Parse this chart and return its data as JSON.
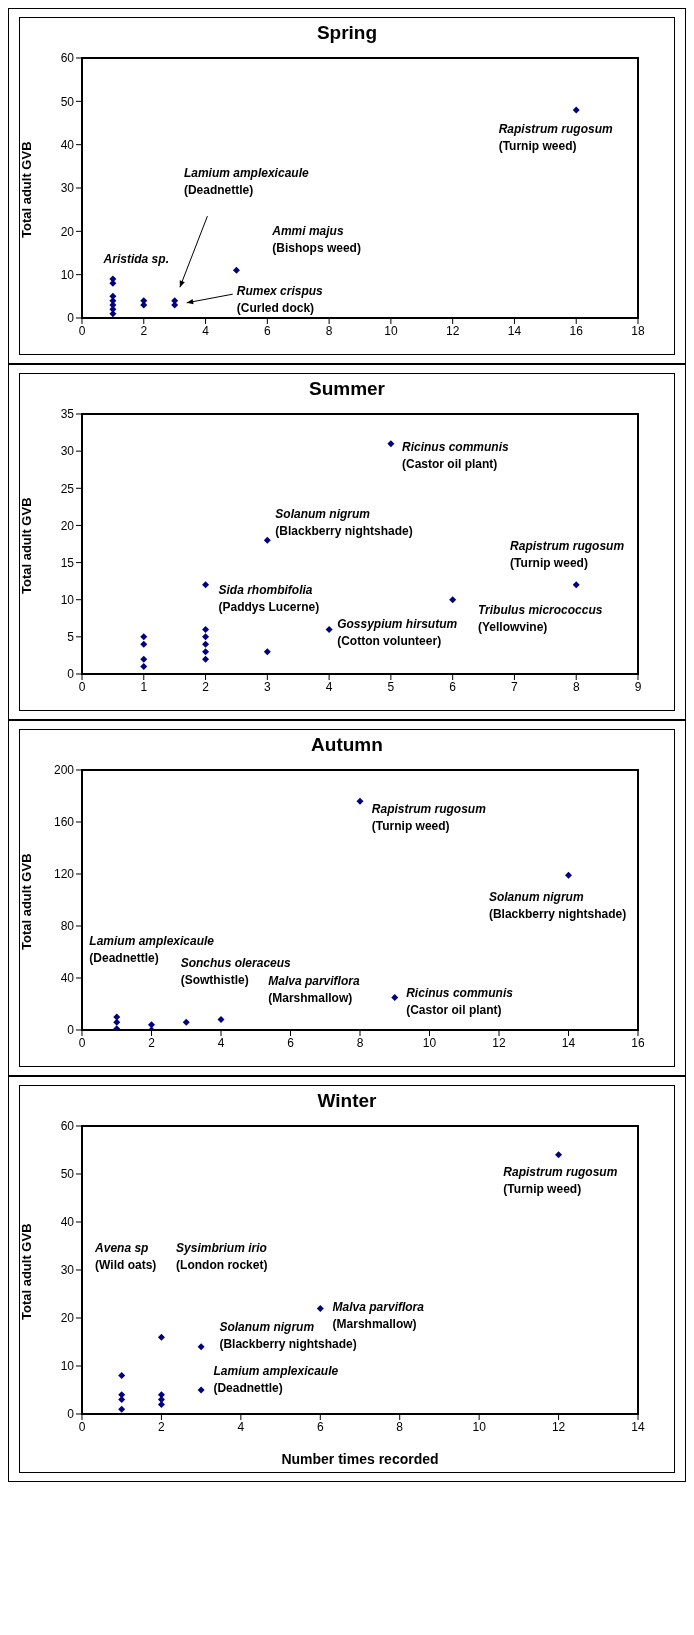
{
  "chart_data": [
    {
      "type": "scatter",
      "title": "Spring",
      "ylabel": "Total adult GVB",
      "color": "#000080",
      "marker": "diamond",
      "x": [
        1,
        1,
        1,
        1,
        1,
        1,
        1,
        2,
        2,
        3,
        3,
        5,
        16
      ],
      "values": [
        9,
        8,
        5,
        4,
        3,
        2,
        1,
        4,
        3,
        4,
        3,
        11,
        48
      ],
      "xlim": [
        0,
        18
      ],
      "xticks": [
        0,
        2,
        4,
        6,
        8,
        10,
        12,
        14,
        16,
        18
      ],
      "ylim": [
        0,
        60
      ],
      "yticks": [
        0,
        10,
        20,
        30,
        40,
        50,
        60
      ],
      "annotations": [
        "Rapistrum rugosum\n(Turnip weed)",
        "Lamium amplexicaule\n(Deadnettle)",
        "Ammi majus\n(Bishops weed)",
        "Aristida sp.",
        "Rumex crispus\n(Curled dock)"
      ]
    },
    {
      "type": "scatter",
      "title": "Summer",
      "ylabel": "Total adult GVB",
      "color": "#000080",
      "marker": "diamond",
      "x": [
        1,
        1,
        1,
        1,
        2,
        2,
        2,
        2,
        2,
        2,
        3,
        3,
        4,
        5,
        6,
        8
      ],
      "values": [
        5,
        4,
        2,
        1,
        12,
        6,
        5,
        4,
        3,
        2,
        18,
        3,
        6,
        31,
        10,
        12
      ],
      "xlim": [
        0,
        9
      ],
      "xticks": [
        0,
        1,
        2,
        3,
        4,
        5,
        6,
        7,
        8,
        9
      ],
      "ylim": [
        0,
        35
      ],
      "yticks": [
        0,
        5,
        10,
        15,
        20,
        25,
        30,
        35
      ],
      "annotations": [
        "Ricinus communis\n(Castor oil plant)",
        "Solanum nigrum\n(Blackberry nightshade)",
        "Rapistrum rugosum\n(Turnip weed)",
        "Sida rhombifolia\n(Paddys Lucerne)",
        "Gossypium hirsutum\n(Cotton volunteer)",
        "Tribulus micrococcus\n(Yellowvine)"
      ]
    },
    {
      "type": "scatter",
      "title": "Autumn",
      "ylabel": "Total adult GVB",
      "color": "#000080",
      "marker": "diamond",
      "x": [
        1,
        1,
        1,
        2,
        2,
        3,
        4,
        8,
        9,
        14
      ],
      "values": [
        10,
        6,
        1,
        4,
        0,
        6,
        8,
        176,
        25,
        119
      ],
      "xlim": [
        0,
        16
      ],
      "xticks": [
        0,
        2,
        4,
        6,
        8,
        10,
        12,
        14,
        16
      ],
      "ylim": [
        0,
        200
      ],
      "yticks": [
        0,
        40,
        80,
        120,
        160,
        200
      ],
      "annotations": [
        "Rapistrum rugosum\n(Turnip weed)",
        "Solanum nigrum\n(Blackberry nightshade)",
        "Lamium amplexicaule\n(Deadnettle)",
        "Sonchus oleraceus\n(Sowthistle)",
        "Malva parviflora\n(Marshmallow)",
        "Ricinus communis\n(Castor oil plant)"
      ]
    },
    {
      "type": "scatter",
      "title": "Winter",
      "ylabel": "Total adult GVB",
      "xlabel": "Number times recorded",
      "color": "#000080",
      "marker": "diamond",
      "x": [
        1,
        1,
        1,
        1,
        2,
        2,
        2,
        2,
        3,
        3,
        6,
        12
      ],
      "values": [
        8,
        4,
        3,
        1,
        16,
        4,
        3,
        2,
        14,
        5,
        22,
        54
      ],
      "xlim": [
        0,
        14
      ],
      "xticks": [
        0,
        2,
        4,
        6,
        8,
        10,
        12,
        14
      ],
      "ylim": [
        0,
        60
      ],
      "yticks": [
        0,
        10,
        20,
        30,
        40,
        50,
        60
      ],
      "annotations": [
        "Rapistrum rugosum\n(Turnip weed)",
        "Avena sp\n(Wild oats)",
        "Sysimbrium irio\n(London rocket)",
        "Malva parviflora\n(Marshmallow)",
        "Solanum nigrum\n(Blackberry nightshade)",
        "Lamium amplexicaule\n(Deadnettle)"
      ]
    }
  ]
}
